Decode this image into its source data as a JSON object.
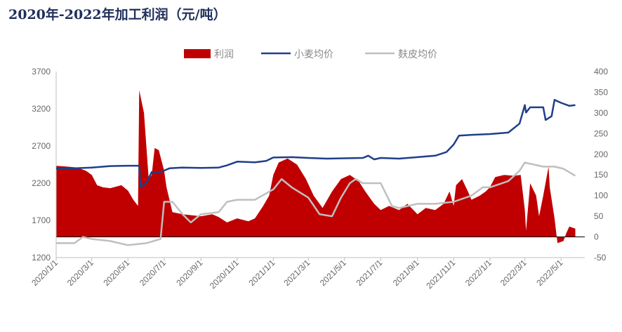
{
  "title": "2020年-2022年加工利润（元/吨）",
  "colors": {
    "profit": "#c00000",
    "wheat": "#1f3f8a",
    "bran": "#bfbfbf",
    "title": "#1f2f5c"
  },
  "chart_data": {
    "type": "line",
    "title": "2020年-2022年加工利润（元/吨）",
    "legend": {
      "position": "top",
      "entries": [
        "利润",
        "小麦均价",
        "麸皮均价"
      ]
    },
    "x_ticks": [
      "2020/1/1",
      "2020/3/1",
      "2020/5/1",
      "2020/7/1",
      "2020/9/1",
      "2020/11/1",
      "2021/1/1",
      "2021/3/1",
      "2021/5/1",
      "2021/7/1",
      "2021/9/1",
      "2021/11/1",
      "2022/1/1",
      "2022/3/1",
      "2022/5/1"
    ],
    "y_left": {
      "range": [
        1200,
        3700
      ],
      "ticks": [
        1200,
        1700,
        2200,
        2700,
        3200,
        3700
      ]
    },
    "y_right": {
      "range": [
        -50,
        400
      ],
      "ticks": [
        -50,
        0,
        50,
        100,
        150,
        200,
        250,
        300,
        350,
        400
      ]
    },
    "grid": false,
    "series": [
      {
        "name": "利润",
        "type": "area",
        "axis": "right",
        "points": [
          [
            "2020/1/1",
            172
          ],
          [
            "2020/1/20",
            170
          ],
          [
            "2020/2/5",
            168
          ],
          [
            "2020/2/20",
            160
          ],
          [
            "2020/3/1",
            150
          ],
          [
            "2020/3/10",
            125
          ],
          [
            "2020/3/20",
            120
          ],
          [
            "2020/4/1",
            118
          ],
          [
            "2020/4/20",
            125
          ],
          [
            "2020/5/1",
            112
          ],
          [
            "2020/5/10",
            90
          ],
          [
            "2020/5/18",
            75
          ],
          [
            "2020/5/20",
            355
          ],
          [
            "2020/5/28",
            300
          ],
          [
            "2020/6/5",
            140
          ],
          [
            "2020/6/10",
            150
          ],
          [
            "2020/6/15",
            215
          ],
          [
            "2020/6/22",
            210
          ],
          [
            "2020/7/1",
            160
          ],
          [
            "2020/7/5",
            120
          ],
          [
            "2020/7/15",
            60
          ],
          [
            "2020/8/1",
            55
          ],
          [
            "2020/9/1",
            50
          ],
          [
            "2020/9/20",
            55
          ],
          [
            "2020/10/1",
            48
          ],
          [
            "2020/10/15",
            35
          ],
          [
            "2020/11/1",
            45
          ],
          [
            "2020/11/20",
            38
          ],
          [
            "2020/12/1",
            45
          ],
          [
            "2020/12/15",
            75
          ],
          [
            "2020/12/25",
            100
          ],
          [
            "2021/1/1",
            150
          ],
          [
            "2021/1/10",
            180
          ],
          [
            "2021/1/25",
            190
          ],
          [
            "2021/2/10",
            175
          ],
          [
            "2021/2/25",
            140
          ],
          [
            "2021/3/10",
            100
          ],
          [
            "2021/3/25",
            70
          ],
          [
            "2021/4/10",
            110
          ],
          [
            "2021/4/25",
            140
          ],
          [
            "2021/5/10",
            150
          ],
          [
            "2021/5/25",
            135
          ],
          [
            "2021/6/5",
            110
          ],
          [
            "2021/6/20",
            80
          ],
          [
            "2021/7/1",
            65
          ],
          [
            "2021/7/15",
            75
          ],
          [
            "2021/8/1",
            65
          ],
          [
            "2021/8/15",
            80
          ],
          [
            "2021/9/1",
            55
          ],
          [
            "2021/9/15",
            70
          ],
          [
            "2021/10/1",
            65
          ],
          [
            "2021/10/15",
            80
          ],
          [
            "2021/10/25",
            110
          ],
          [
            "2021/11/1",
            75
          ],
          [
            "2021/11/5",
            125
          ],
          [
            "2021/11/15",
            140
          ],
          [
            "2021/11/25",
            110
          ],
          [
            "2021/12/1",
            90
          ],
          [
            "2021/12/15",
            100
          ],
          [
            "2021/12/25",
            110
          ],
          [
            "2022/1/1",
            120
          ],
          [
            "2022/1/10",
            145
          ],
          [
            "2022/1/25",
            150
          ],
          [
            "2022/2/10",
            148
          ],
          [
            "2022/2/22",
            150
          ],
          [
            "2022/3/1",
            65
          ],
          [
            "2022/3/3",
            15
          ],
          [
            "2022/3/10",
            130
          ],
          [
            "2022/3/20",
            100
          ],
          [
            "2022/3/25",
            50
          ],
          [
            "2022/4/1",
            100
          ],
          [
            "2022/4/10",
            170
          ],
          [
            "2022/4/12",
            120
          ],
          [
            "2022/4/20",
            45
          ],
          [
            "2022/4/25",
            -15
          ],
          [
            "2022/5/5",
            -10
          ],
          [
            "2022/5/10",
            10
          ],
          [
            "2022/5/15",
            25
          ],
          [
            "2022/5/25",
            20
          ]
        ]
      },
      {
        "name": "小麦均价",
        "type": "line",
        "axis": "left",
        "points": [
          [
            "2020/1/1",
            2400
          ],
          [
            "2020/2/1",
            2400
          ],
          [
            "2020/3/1",
            2410
          ],
          [
            "2020/4/1",
            2430
          ],
          [
            "2020/5/1",
            2435
          ],
          [
            "2020/5/20",
            2435
          ],
          [
            "2020/5/22",
            2150
          ],
          [
            "2020/6/1",
            2200
          ],
          [
            "2020/6/10",
            2350
          ],
          [
            "2020/6/25",
            2350
          ],
          [
            "2020/7/1",
            2370
          ],
          [
            "2020/7/10",
            2400
          ],
          [
            "2020/8/1",
            2410
          ],
          [
            "2020/9/1",
            2405
          ],
          [
            "2020/10/1",
            2410
          ],
          [
            "2020/10/15",
            2440
          ],
          [
            "2020/11/1",
            2490
          ],
          [
            "2020/12/1",
            2480
          ],
          [
            "2020/12/20",
            2500
          ],
          [
            "2021/1/1",
            2545
          ],
          [
            "2021/2/1",
            2550
          ],
          [
            "2021/3/1",
            2540
          ],
          [
            "2021/4/1",
            2530
          ],
          [
            "2021/5/1",
            2535
          ],
          [
            "2021/6/1",
            2540
          ],
          [
            "2021/6/10",
            2570
          ],
          [
            "2021/6/20",
            2520
          ],
          [
            "2021/7/1",
            2540
          ],
          [
            "2021/8/1",
            2530
          ],
          [
            "2021/9/1",
            2550
          ],
          [
            "2021/10/1",
            2570
          ],
          [
            "2021/10/20",
            2620
          ],
          [
            "2021/11/1",
            2720
          ],
          [
            "2021/11/10",
            2840
          ],
          [
            "2021/12/1",
            2850
          ],
          [
            "2022/1/1",
            2860
          ],
          [
            "2022/2/1",
            2880
          ],
          [
            "2022/2/20",
            3000
          ],
          [
            "2022/3/1",
            3250
          ],
          [
            "2022/3/3",
            3150
          ],
          [
            "2022/3/10",
            3220
          ],
          [
            "2022/4/1",
            3220
          ],
          [
            "2022/4/5",
            3050
          ],
          [
            "2022/4/15",
            3100
          ],
          [
            "2022/4/20",
            3320
          ],
          [
            "2022/5/1",
            3280
          ],
          [
            "2022/5/15",
            3240
          ],
          [
            "2022/5/25",
            3250
          ]
        ]
      },
      {
        "name": "麸皮均价",
        "type": "line",
        "axis": "right",
        "points": [
          [
            "2020/1/1",
            -15
          ],
          [
            "2020/2/1",
            -15
          ],
          [
            "2020/2/15",
            0
          ],
          [
            "2020/3/1",
            -5
          ],
          [
            "2020/4/1",
            -10
          ],
          [
            "2020/5/1",
            -20
          ],
          [
            "2020/6/1",
            -15
          ],
          [
            "2020/6/25",
            -5
          ],
          [
            "2020/7/1",
            85
          ],
          [
            "2020/7/15",
            85
          ],
          [
            "2020/8/1",
            55
          ],
          [
            "2020/8/15",
            35
          ],
          [
            "2020/9/1",
            55
          ],
          [
            "2020/10/1",
            60
          ],
          [
            "2020/10/15",
            85
          ],
          [
            "2020/11/1",
            90
          ],
          [
            "2020/12/1",
            90
          ],
          [
            "2021/1/1",
            115
          ],
          [
            "2021/1/15",
            140
          ],
          [
            "2021/2/1",
            120
          ],
          [
            "2021/3/1",
            95
          ],
          [
            "2021/3/20",
            55
          ],
          [
            "2021/4/10",
            50
          ],
          [
            "2021/4/25",
            95
          ],
          [
            "2021/5/10",
            130
          ],
          [
            "2021/5/20",
            140
          ],
          [
            "2021/6/1",
            130
          ],
          [
            "2021/7/1",
            130
          ],
          [
            "2021/7/20",
            75
          ],
          [
            "2021/8/1",
            70
          ],
          [
            "2021/9/1",
            80
          ],
          [
            "2021/10/1",
            80
          ],
          [
            "2021/11/1",
            85
          ],
          [
            "2021/12/1",
            100
          ],
          [
            "2021/12/20",
            120
          ],
          [
            "2022/1/1",
            120
          ],
          [
            "2022/2/1",
            135
          ],
          [
            "2022/2/20",
            160
          ],
          [
            "2022/3/1",
            180
          ],
          [
            "2022/4/1",
            170
          ],
          [
            "2022/4/20",
            170
          ],
          [
            "2022/5/5",
            165
          ],
          [
            "2022/5/25",
            148
          ]
        ]
      }
    ]
  }
}
